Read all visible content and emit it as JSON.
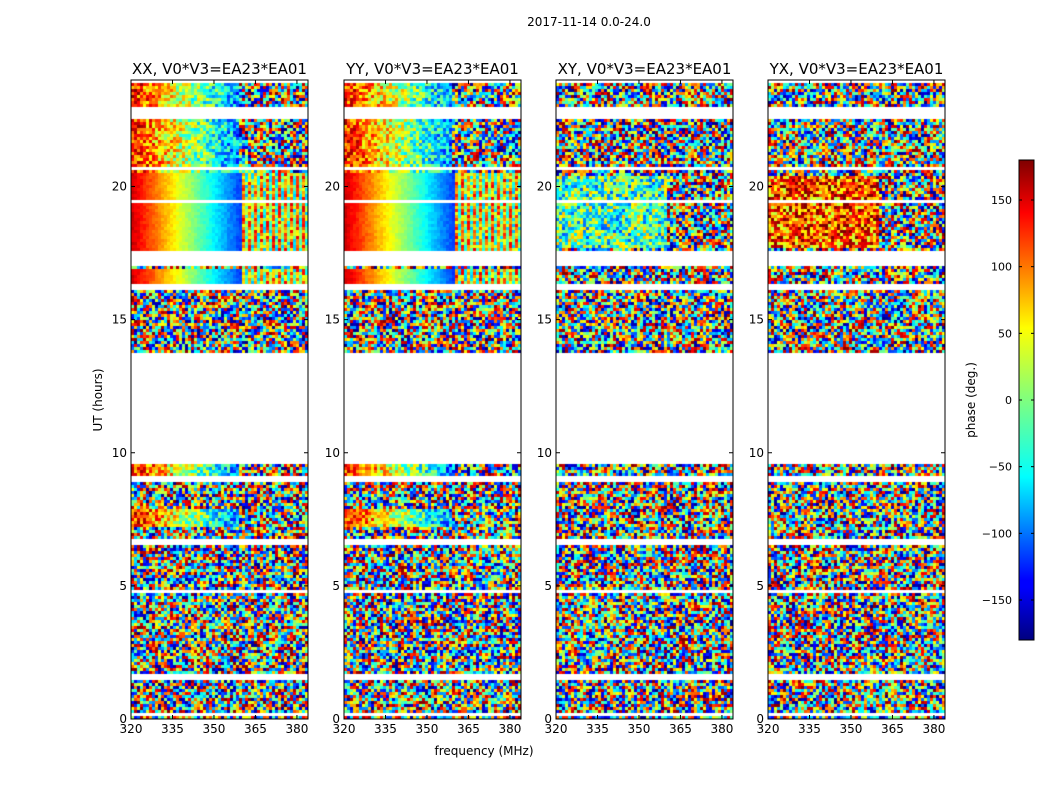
{
  "chart_data": {
    "type": "heatmap",
    "suptitle": "2017-11-14 0.0-24.0",
    "xlabel": "frequency (MHz)",
    "ylabel": "UT (hours)",
    "xlim": [
      320,
      384
    ],
    "ylim": [
      0,
      24
    ],
    "xticks": [
      320,
      335,
      350,
      365,
      380
    ],
    "yticks": [
      0,
      5,
      10,
      15,
      20
    ],
    "panels": [
      {
        "title": "XX, V0*V3=EA23*EA01",
        "pol": "XX"
      },
      {
        "title": "YY, V0*V3=EA23*EA01",
        "pol": "YY"
      },
      {
        "title": "XY, V0*V3=EA23*EA01",
        "pol": "XY"
      },
      {
        "title": "YX, V0*V3=EA23*EA01",
        "pol": "YX"
      }
    ],
    "colorbar": {
      "label": "phase (deg.)",
      "range": [
        -180,
        180
      ],
      "ticks": [
        150,
        100,
        50,
        0,
        -50,
        -100,
        -150
      ],
      "colormap": "jet"
    },
    "data_coverage_hours": [
      [
        0.0,
        9.6
      ],
      [
        13.8,
        17.1
      ],
      [
        17.6,
        22.6
      ],
      [
        23.0,
        24.0
      ]
    ],
    "blank_rows_hours": [
      [
        0.2,
        0.3
      ],
      [
        1.5,
        1.7
      ],
      [
        4.8,
        4.9
      ],
      [
        6.6,
        6.8
      ],
      [
        9.0,
        9.2
      ],
      [
        16.2,
        16.4
      ],
      [
        19.4,
        19.6
      ],
      [
        20.7,
        20.8
      ]
    ]
  }
}
